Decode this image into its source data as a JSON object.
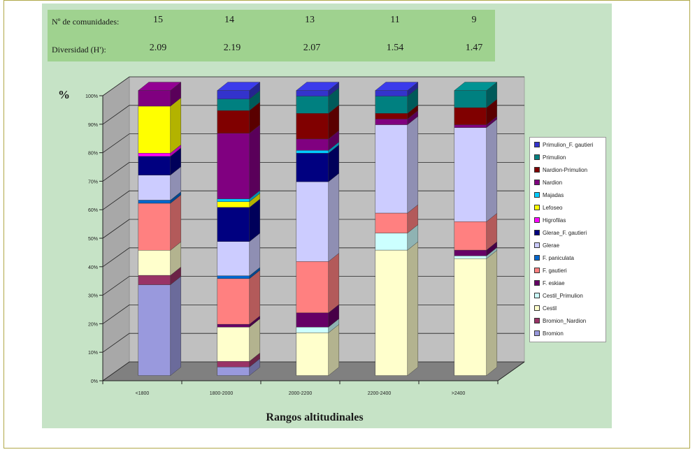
{
  "header": {
    "communities_label": "Nº de comunidades:",
    "communities": [
      "15",
      "14",
      "13",
      "11",
      "9"
    ],
    "diversity_label": "Diversidad (H'):",
    "diversity": [
      "2.09",
      "2.19",
      "2.07",
      "1.54",
      "1.47"
    ]
  },
  "colors": {
    "panel_bg": "#c6e3c6",
    "header_bg": "#9fd28f",
    "plot_bg": "#c0c0c0",
    "floor": "#808080"
  },
  "chart_data": {
    "type": "bar",
    "stacked": true,
    "percent": true,
    "three_d": true,
    "y_symbol": "%",
    "xlabel": "Rangos altitudinales",
    "categories": [
      "<1800",
      "1800-2000",
      "2000-2200",
      "2200-2400",
      ">2400"
    ],
    "yticks": [
      "0%",
      "10%",
      "20%",
      "30%",
      "40%",
      "50%",
      "60%",
      "70%",
      "80%",
      "90%",
      "100%"
    ],
    "ylim": [
      0,
      100
    ],
    "grid": true,
    "legend_position": "right",
    "series": [
      {
        "name": "Bromion",
        "color": "#9999dd",
        "values": [
          29,
          3,
          0,
          0,
          0
        ]
      },
      {
        "name": "Bromion_Nardion",
        "color": "#993366",
        "values": [
          3,
          2,
          0,
          0,
          0
        ]
      },
      {
        "name": "Cestil",
        "color": "#ffffcc",
        "values": [
          8,
          12,
          15,
          44,
          41
        ]
      },
      {
        "name": "Cestil_Primulion",
        "color": "#ccffff",
        "values": [
          0,
          0,
          2,
          6,
          1
        ]
      },
      {
        "name": "F. eskiae",
        "color": "#660066",
        "values": [
          0,
          1,
          5,
          0,
          2
        ]
      },
      {
        "name": "F. gautieri",
        "color": "#ff8080",
        "values": [
          15,
          16,
          18,
          7,
          10
        ]
      },
      {
        "name": "F. paniculata",
        "color": "#0066cc",
        "values": [
          1,
          1,
          0,
          0,
          0
        ]
      },
      {
        "name": "Glerae",
        "color": "#ccccff",
        "values": [
          8,
          12,
          28,
          31,
          33
        ]
      },
      {
        "name": "Glerae_F. gautieri",
        "color": "#000080",
        "values": [
          6,
          12,
          10,
          0,
          0
        ]
      },
      {
        "name": "Higrofilas",
        "color": "#ff00ff",
        "values": [
          1,
          0,
          0,
          0,
          0
        ]
      },
      {
        "name": "Lefoseo",
        "color": "#ffff00",
        "values": [
          15,
          2,
          0,
          0,
          0
        ]
      },
      {
        "name": "Majadas",
        "color": "#00ccff",
        "values": [
          0,
          1,
          1,
          0,
          0
        ]
      },
      {
        "name": "Nardion",
        "color": "#800080",
        "values": [
          5,
          23,
          4,
          2,
          1
        ]
      },
      {
        "name": "Nardion-Primulion",
        "color": "#800000",
        "values": [
          0,
          8,
          9,
          2,
          6
        ]
      },
      {
        "name": "Primulion",
        "color": "#008080",
        "values": [
          0,
          4,
          6,
          6,
          6
        ]
      },
      {
        "name": "Primulion_F. gautieri",
        "color": "#3333cc",
        "values": [
          0,
          3,
          2,
          2,
          0
        ]
      }
    ],
    "legend_order": [
      "Primulion_F. gautieri",
      "Primulion",
      "Nardion-Primulion",
      "Nardion",
      "Majadas",
      "Lefoseo",
      "Higrofilas",
      "Glerae_F. gautieri",
      "Glerae",
      "F. paniculata",
      "F. gautieri",
      "F. eskiae",
      "Cestil_Primulion",
      "Cestil",
      "Bromion_Nardion",
      "Bromion"
    ]
  }
}
